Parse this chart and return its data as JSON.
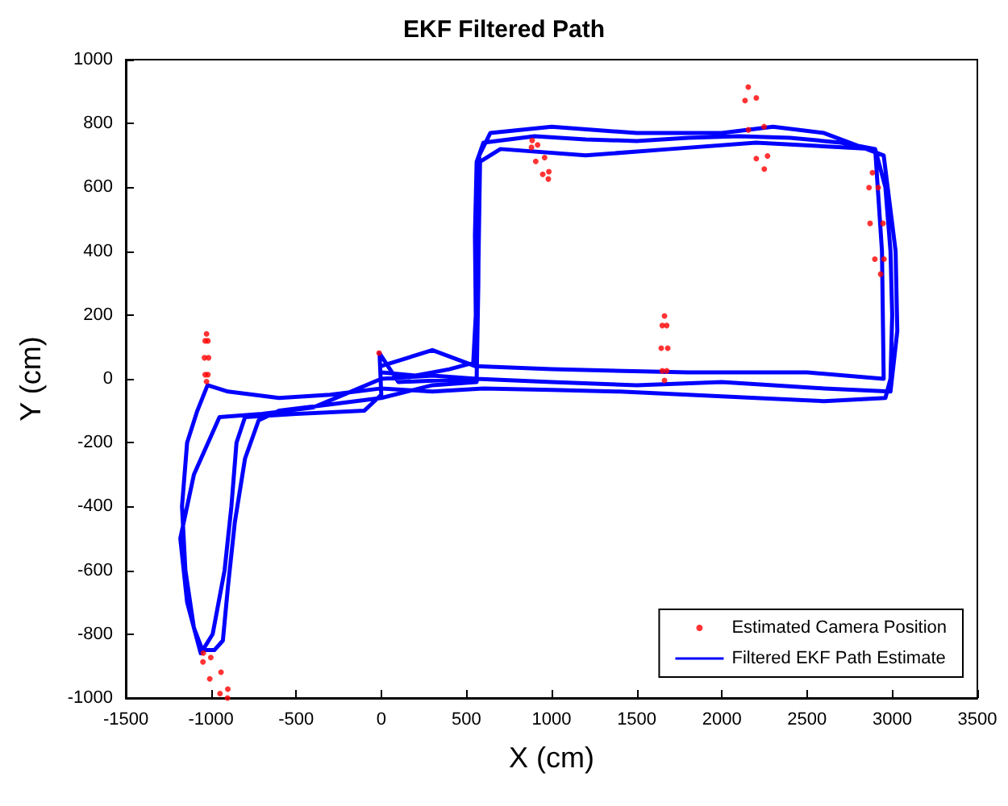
{
  "chart_data": {
    "type": "line",
    "title": "EKF Filtered Path",
    "xlabel": "X (cm)",
    "ylabel": "Y (cm)",
    "xlim": [
      -1500,
      3500
    ],
    "xticks": [
      -1500,
      -1000,
      -500,
      0,
      500,
      1000,
      1500,
      2000,
      2500,
      3000,
      3500
    ],
    "ylim": [
      -1000,
      1000
    ],
    "yticks": [
      -1000,
      -800,
      -600,
      -400,
      -200,
      0,
      200,
      400,
      600,
      800,
      1000
    ],
    "legend": "bottom right",
    "series": [
      {
        "name": "Estimated Camera Position",
        "type": "scatter",
        "marker": "circle",
        "color": "#ff0000",
        "x": [
          -1026,
          -1018,
          -1014,
          -1018,
          -1026,
          -1034,
          -1038,
          -1034,
          -13,
          -1045,
          -1001,
          -941,
          -901,
          -903,
          -947,
          -1007,
          -1047,
          886,
          918,
          959,
          984,
          981,
          948,
          907,
          882,
          2155,
          2202,
          2248,
          2268,
          2249,
          2202,
          2156,
          2136,
          2884,
          2918,
          2946,
          2952,
          2932,
          2898,
          2870,
          2864,
          1663,
          1676,
          1682,
          1676,
          1663,
          1650,
          1644,
          1650
        ],
        "values": [
          141,
          119,
          66,
          13,
          -9,
          13,
          66,
          119,
          81,
          -859,
          -873,
          -919,
          -972,
          -1000,
          -986,
          -940,
          -887,
          747,
          733,
          693,
          649,
          626,
          641,
          681,
          725,
          914,
          880,
          790,
          698,
          657,
          690,
          780,
          872,
          646,
          599,
          487,
          375,
          328,
          375,
          487,
          599,
          197,
          167,
          96,
          25,
          -5,
          25,
          96,
          167
        ]
      },
      {
        "name": "Filtered EKF Path Estimate",
        "type": "line",
        "line_style": "solid",
        "color": "#0000ff",
        "x": [
          0,
          200,
          400,
          540,
          555,
          550,
          560,
          600,
          900,
          1200,
          1500,
          1800,
          2100,
          2400,
          2700,
          2900,
          2960,
          2990,
          3000,
          2990,
          2960,
          2600,
          2200,
          1800,
          1400,
          1000,
          600,
          300,
          0,
          -300,
          -600,
          -900,
          -1020,
          -1080,
          -1140,
          -1170,
          -1150,
          -1100,
          -1050,
          -980,
          -930,
          -900,
          -860,
          -800,
          -720,
          -600,
          -300,
          0,
          300,
          560,
          570,
          575,
          640,
          1000,
          1500,
          2000,
          2300,
          2600,
          2950,
          3020,
          3030,
          2990,
          2600,
          2000,
          1500,
          1000,
          560,
          300,
          0,
          -400,
          -700,
          -950,
          -1100,
          -1180,
          -1140,
          -1060,
          -990,
          -920,
          -880,
          -850,
          -800,
          -500,
          -100,
          0,
          -10,
          100,
          560,
          580,
          700,
          1200,
          1700,
          2200,
          2900,
          2940,
          2950,
          2500,
          1800,
          1000,
          550,
          300,
          0
        ],
        "values": [
          20,
          10,
          30,
          50,
          200,
          450,
          680,
          740,
          760,
          750,
          745,
          755,
          760,
          755,
          740,
          720,
          600,
          400,
          200,
          0,
          -60,
          -70,
          -60,
          -50,
          -40,
          -35,
          -30,
          -40,
          -30,
          -50,
          -60,
          -40,
          -20,
          -100,
          -200,
          -400,
          -600,
          -780,
          -850,
          -850,
          -820,
          -650,
          -450,
          -250,
          -130,
          -100,
          -80,
          -60,
          -20,
          -10,
          300,
          700,
          770,
          790,
          770,
          770,
          790,
          770,
          700,
          400,
          150,
          -40,
          -30,
          -10,
          -20,
          -10,
          0,
          10,
          0,
          -90,
          -110,
          -120,
          -300,
          -500,
          -700,
          -860,
          -800,
          -600,
          -400,
          -200,
          -120,
          -110,
          -100,
          -50,
          80,
          -10,
          0,
          680,
          720,
          700,
          720,
          740,
          720,
          400,
          0,
          20,
          20,
          30,
          40,
          90,
          40
        ]
      }
    ]
  }
}
